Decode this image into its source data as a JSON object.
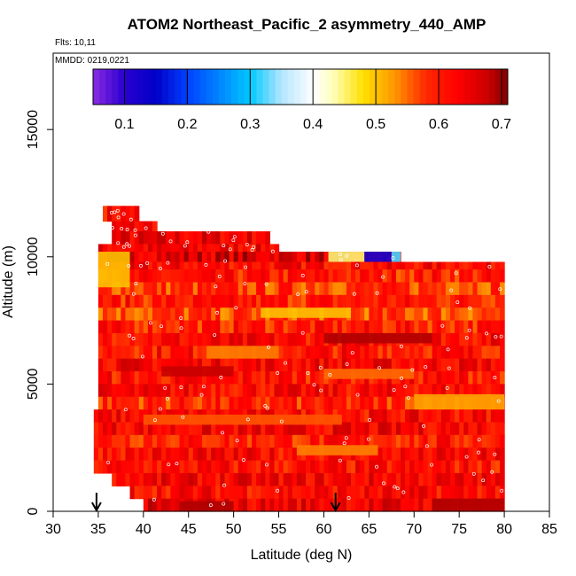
{
  "chart_data": {
    "type": "heatmap",
    "title": "ATOM2 Northeast_Pacific_2 asymmetry_440_AMP",
    "flights_label": "Flts: 10,11",
    "dates_label": "MMDD: 0219,0221",
    "xlabel": "Latitude (deg N)",
    "ylabel": "Altitude (m)",
    "xlim": [
      30,
      85
    ],
    "ylim": [
      0,
      18000
    ],
    "x_ticks": [
      30,
      35,
      40,
      45,
      50,
      55,
      60,
      65,
      70,
      75,
      80,
      85
    ],
    "y_ticks": [
      0,
      5000,
      10000,
      15000
    ],
    "x_tick_labels": [
      "30",
      "35",
      "40",
      "45",
      "50",
      "55",
      "60",
      "65",
      "70",
      "75",
      "80",
      "85"
    ],
    "y_tick_labels": [
      "0",
      "5000",
      "10000",
      "15000"
    ],
    "colorbar": {
      "range": [
        0.05,
        0.71
      ],
      "ticks": [
        0.1,
        0.2,
        0.3,
        0.4,
        0.5,
        0.6,
        0.7
      ],
      "tick_labels": [
        "0.1",
        "0.2",
        "0.3",
        "0.4",
        "0.5",
        "0.6",
        "0.7"
      ],
      "stops": [
        {
          "v": 0.05,
          "c": "#8a2be2"
        },
        {
          "v": 0.1,
          "c": "#2a00d0"
        },
        {
          "v": 0.15,
          "c": "#0000c8"
        },
        {
          "v": 0.2,
          "c": "#0040ff"
        },
        {
          "v": 0.3,
          "c": "#00c8ff"
        },
        {
          "v": 0.35,
          "c": "#b4e6ff"
        },
        {
          "v": 0.4,
          "c": "#ffffff"
        },
        {
          "v": 0.43,
          "c": "#ffffc0"
        },
        {
          "v": 0.48,
          "c": "#ffe000"
        },
        {
          "v": 0.53,
          "c": "#ff9600"
        },
        {
          "v": 0.58,
          "c": "#ff2800"
        },
        {
          "v": 0.63,
          "c": "#ff0000"
        },
        {
          "v": 0.68,
          "c": "#c80000"
        },
        {
          "v": 0.71,
          "c": "#800000"
        }
      ]
    },
    "flight_markers_lat": [
      34.8,
      61.3
    ],
    "profile_segments": [
      {
        "lat": [
          35.5,
          39.5
        ],
        "alt": [
          11400,
          12000
        ],
        "value": 0.62
      },
      {
        "lat": [
          36.5,
          41.5
        ],
        "alt": [
          11000,
          11400
        ],
        "value": 0.63
      },
      {
        "lat": [
          36.5,
          54.0
        ],
        "alt": [
          10500,
          11000
        ],
        "value": 0.64
      },
      {
        "lat": [
          35.0,
          55.0
        ],
        "alt": [
          10200,
          10500
        ],
        "value": 0.63
      },
      {
        "lat": [
          35.0,
          68.5
        ],
        "alt": [
          9800,
          10200
        ],
        "value": 0.66
      },
      {
        "lat": [
          35.0,
          80.0
        ],
        "alt": [
          9500,
          9800
        ],
        "value": 0.62
      },
      {
        "lat": [
          35.0,
          80.0
        ],
        "alt": [
          9000,
          9500
        ],
        "value": 0.6
      },
      {
        "lat": [
          35.0,
          80.0
        ],
        "alt": [
          8500,
          9000
        ],
        "value": 0.58
      },
      {
        "lat": [
          35.0,
          80.0
        ],
        "alt": [
          8000,
          8500
        ],
        "value": 0.6
      },
      {
        "lat": [
          35.0,
          80.0
        ],
        "alt": [
          7500,
          8000
        ],
        "value": 0.57
      },
      {
        "lat": [
          35.0,
          80.0
        ],
        "alt": [
          7000,
          7500
        ],
        "value": 0.6
      },
      {
        "lat": [
          35.0,
          80.0
        ],
        "alt": [
          6500,
          7000
        ],
        "value": 0.62
      },
      {
        "lat": [
          35.0,
          80.0
        ],
        "alt": [
          6000,
          6500
        ],
        "value": 0.61
      },
      {
        "lat": [
          35.0,
          80.0
        ],
        "alt": [
          5500,
          6000
        ],
        "value": 0.63
      },
      {
        "lat": [
          35.0,
          80.0
        ],
        "alt": [
          5000,
          5500
        ],
        "value": 0.61
      },
      {
        "lat": [
          35.0,
          80.0
        ],
        "alt": [
          4500,
          5000
        ],
        "value": 0.62
      },
      {
        "lat": [
          35.0,
          80.0
        ],
        "alt": [
          4000,
          4500
        ],
        "value": 0.59
      },
      {
        "lat": [
          34.5,
          80.0
        ],
        "alt": [
          3500,
          4000
        ],
        "value": 0.62
      },
      {
        "lat": [
          34.5,
          80.0
        ],
        "alt": [
          3000,
          3500
        ],
        "value": 0.63
      },
      {
        "lat": [
          34.5,
          80.0
        ],
        "alt": [
          2500,
          3000
        ],
        "value": 0.6
      },
      {
        "lat": [
          34.5,
          80.0
        ],
        "alt": [
          2000,
          2500
        ],
        "value": 0.62
      },
      {
        "lat": [
          34.5,
          80.0
        ],
        "alt": [
          1500,
          2000
        ],
        "value": 0.61
      },
      {
        "lat": [
          36.5,
          80.0
        ],
        "alt": [
          1000,
          1500
        ],
        "value": 0.63
      },
      {
        "lat": [
          38.5,
          80.0
        ],
        "alt": [
          500,
          1000
        ],
        "value": 0.62
      },
      {
        "lat": [
          40.0,
          80.0
        ],
        "alt": [
          0,
          500
        ],
        "value": 0.64
      }
    ],
    "features": [
      {
        "lat": [
          35.0,
          38.5
        ],
        "alt": [
          8800,
          10200
        ],
        "value": 0.5
      },
      {
        "lat": [
          60.5,
          64.5
        ],
        "alt": [
          9800,
          10200
        ],
        "value": 0.45
      },
      {
        "lat": [
          64.5,
          67.5
        ],
        "alt": [
          9800,
          10200
        ],
        "value": 0.12
      },
      {
        "lat": [
          67.5,
          68.5
        ],
        "alt": [
          9800,
          10200
        ],
        "value": 0.32
      },
      {
        "lat": [
          53.0,
          63.0
        ],
        "alt": [
          7600,
          8000
        ],
        "value": 0.5
      },
      {
        "lat": [
          60.0,
          70.0
        ],
        "alt": [
          5200,
          5600
        ],
        "value": 0.55
      },
      {
        "lat": [
          70.0,
          80.0
        ],
        "alt": [
          4000,
          4600
        ],
        "value": 0.52
      },
      {
        "lat": [
          47.0,
          55.0
        ],
        "alt": [
          6000,
          6500
        ],
        "value": 0.54
      },
      {
        "lat": [
          42.0,
          50.0
        ],
        "alt": [
          5300,
          5700
        ],
        "value": 0.68
      },
      {
        "lat": [
          60.0,
          72.0
        ],
        "alt": [
          6600,
          7000
        ],
        "value": 0.69
      },
      {
        "lat": [
          57.0,
          66.0
        ],
        "alt": [
          2200,
          2600
        ],
        "value": 0.54
      },
      {
        "lat": [
          40.0,
          62.0
        ],
        "alt": [
          3400,
          3800
        ],
        "value": 0.56
      },
      {
        "lat": [
          72.0,
          80.0
        ],
        "alt": [
          0,
          500
        ],
        "value": 0.69
      },
      {
        "lat": [
          44.0,
          50.0
        ],
        "alt": [
          0,
          400
        ],
        "value": 0.69
      }
    ]
  }
}
